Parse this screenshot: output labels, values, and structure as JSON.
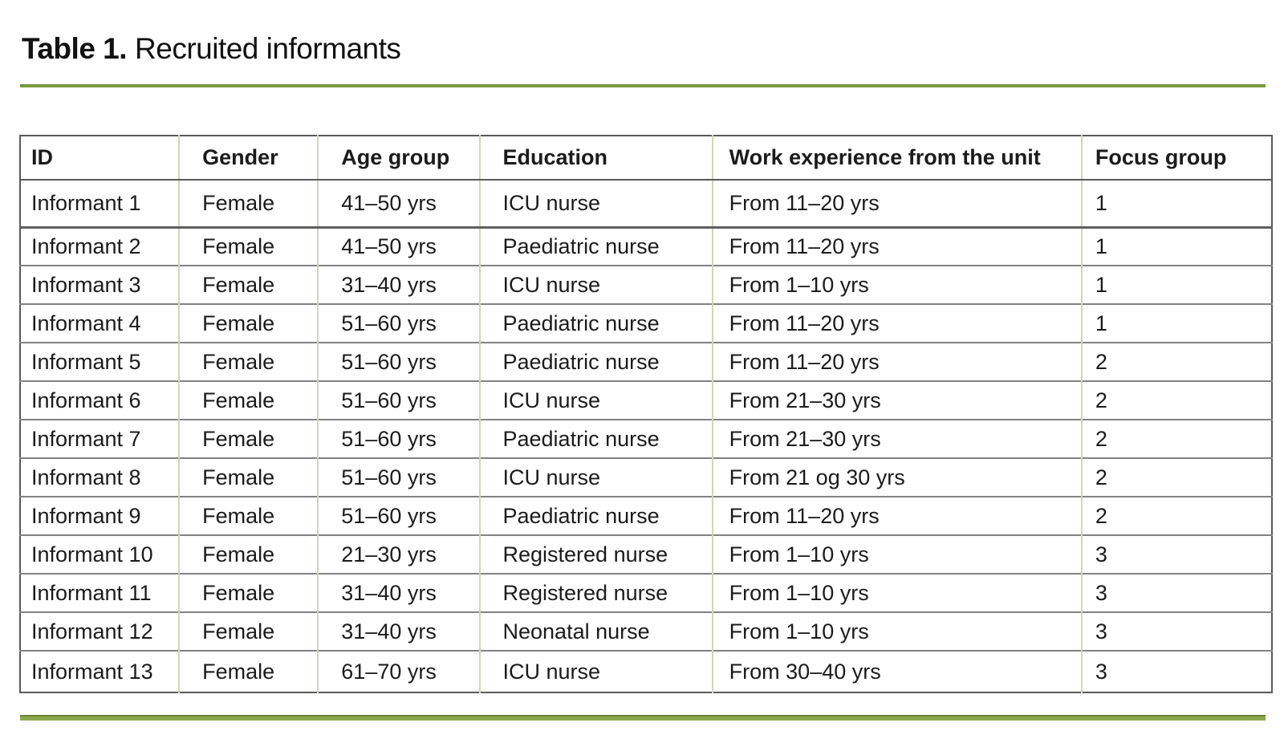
{
  "caption": {
    "label": "Table 1.",
    "text": "Recruited informants"
  },
  "colors": {
    "accent_green_rule": "#7d9c3e",
    "accent_green_rule_bottom": "#8aa94c",
    "accent_green_rule_bottom_edge": "#6c8136",
    "table_outer_border": "#5a5a5a",
    "table_row_border": "#828282",
    "table_column_border": "#d2d5b8",
    "text": "#1b1b1b"
  },
  "table": {
    "columns": [
      "ID",
      "Gender",
      "Age group",
      "Education",
      "Work experience from the unit",
      "Focus group"
    ],
    "rows": [
      [
        "Informant 1",
        "Female",
        "41–50 yrs",
        "ICU nurse",
        "From 11–20 yrs",
        "1"
      ],
      [
        "Informant 2",
        "Female",
        "41–50 yrs",
        "Paediatric nurse",
        "From 11–20 yrs",
        "1"
      ],
      [
        "Informant 3",
        "Female",
        "31–40 yrs",
        "ICU nurse",
        "From 1–10 yrs",
        "1"
      ],
      [
        "Informant 4",
        "Female",
        "51–60 yrs",
        "Paediatric nurse",
        "From 11–20 yrs",
        "1"
      ],
      [
        "Informant 5",
        "Female",
        "51–60 yrs",
        "Paediatric nurse",
        "From 11–20 yrs",
        "2"
      ],
      [
        "Informant 6",
        "Female",
        "51–60 yrs",
        "ICU nurse",
        "From 21–30 yrs",
        "2"
      ],
      [
        "Informant 7",
        "Female",
        "51–60 yrs",
        "Paediatric nurse",
        "From 21–30 yrs",
        "2"
      ],
      [
        "Informant 8",
        "Female",
        "51–60 yrs",
        "ICU nurse",
        "From 21 og 30 yrs",
        "2"
      ],
      [
        "Informant 9",
        "Female",
        "51–60 yrs",
        "Paediatric nurse",
        "From 11–20 yrs",
        "2"
      ],
      [
        "Informant 10",
        "Female",
        "21–30 yrs",
        "Registered nurse",
        "From 1–10 yrs",
        "3"
      ],
      [
        "Informant 11",
        "Female",
        "31–40 yrs",
        "Registered nurse",
        "From 1–10 yrs",
        "3"
      ],
      [
        "Informant 12",
        "Female",
        "31–40 yrs",
        "Neonatal nurse",
        "From 1–10 yrs",
        "3"
      ],
      [
        "Informant 13",
        "Female",
        "61–70 yrs",
        "ICU nurse",
        "From 30–40 yrs",
        "3"
      ]
    ]
  }
}
